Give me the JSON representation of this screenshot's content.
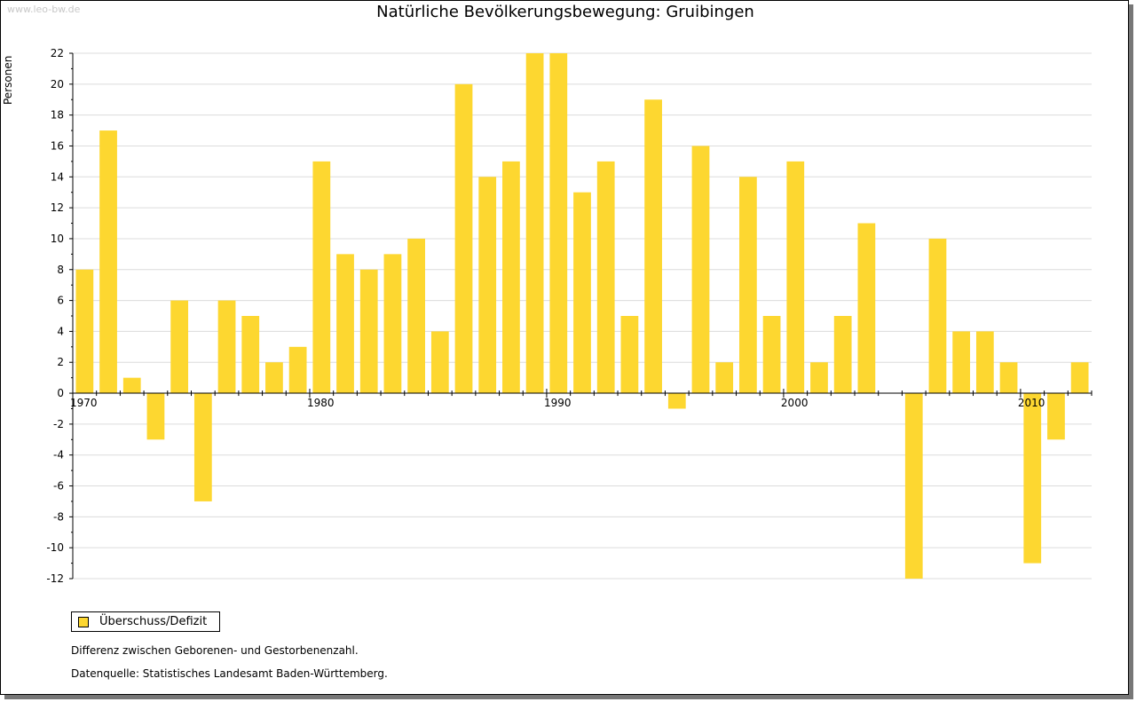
{
  "watermark": "www.leo-bw.de",
  "chart_data": {
    "type": "bar",
    "title": "Natürliche Bevölkerungsbewegung: Gruibingen",
    "ylabel": "Personen",
    "xlabel": "",
    "ylim": [
      -12,
      22
    ],
    "yticks": [
      22,
      20,
      18,
      16,
      14,
      12,
      10,
      8,
      6,
      4,
      2,
      0,
      -2,
      -4,
      -6,
      -8,
      -10,
      -12
    ],
    "x_tick_labels": [
      1970,
      1980,
      1990,
      2000,
      2010
    ],
    "grid": true,
    "legend_position": "bottom-left",
    "series": [
      {
        "name": "Überschuss/Defizit",
        "color": "#fdd730",
        "x": [
          1970,
          1971,
          1972,
          1973,
          1974,
          1975,
          1976,
          1977,
          1978,
          1979,
          1980,
          1981,
          1982,
          1983,
          1984,
          1985,
          1986,
          1987,
          1988,
          1989,
          1990,
          1991,
          1992,
          1993,
          1994,
          1995,
          1996,
          1997,
          1998,
          1999,
          2000,
          2001,
          2002,
          2003,
          2004,
          2005,
          2006,
          2007,
          2008,
          2009,
          2010,
          2011,
          2012
        ],
        "values": [
          8,
          17,
          1,
          -3,
          6,
          -7,
          6,
          5,
          2,
          3,
          15,
          9,
          8,
          9,
          10,
          4,
          20,
          14,
          15,
          22,
          22,
          13,
          15,
          5,
          19,
          -1,
          16,
          2,
          14,
          5,
          15,
          2,
          5,
          11,
          0,
          -12,
          10,
          4,
          4,
          2,
          -11,
          -3,
          2
        ]
      }
    ]
  },
  "notes": {
    "line1": "Differenz zwischen Geborenen- und Gestorbenenzahl.",
    "line2": "Datenquelle: Statistisches Landesamt Baden-Württemberg."
  }
}
